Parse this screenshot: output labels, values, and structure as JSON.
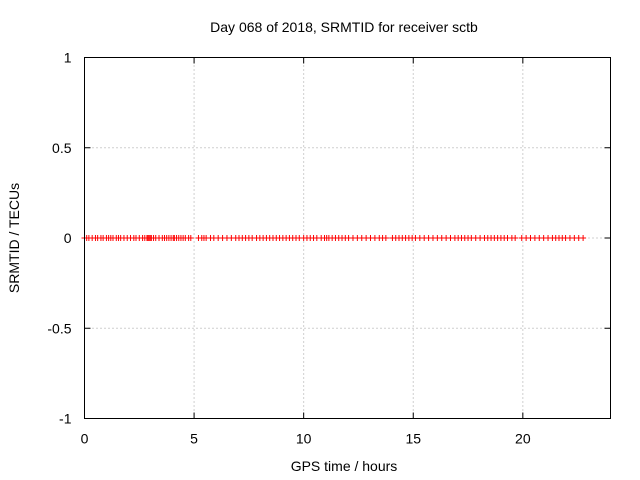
{
  "chart_data": {
    "type": "scatter",
    "title": "Day 068 of 2018, SRMTID for receiver sctb",
    "xlabel": "GPS time / hours",
    "ylabel": "SRMTID / TECUs",
    "xlim": [
      0,
      24
    ],
    "ylim": [
      -1,
      1
    ],
    "xticks": [
      0,
      5,
      10,
      15,
      20
    ],
    "xtick_labels": [
      "0",
      "5",
      "10",
      "15",
      "20"
    ],
    "yticks": [
      -1,
      -0.5,
      0,
      0.5,
      1
    ],
    "ytick_labels": [
      "-1",
      "-0.5",
      "0",
      "0.5",
      "1"
    ],
    "grid": true,
    "series": [
      {
        "name": "SRMTID",
        "marker": "+",
        "color": "#ff0000",
        "x": [
          0.0,
          0.1,
          0.2,
          0.35,
          0.5,
          0.6,
          0.75,
          0.85,
          1.0,
          1.1,
          1.2,
          1.3,
          1.45,
          1.55,
          1.65,
          1.8,
          1.95,
          2.1,
          2.25,
          2.35,
          2.5,
          2.65,
          2.75,
          2.85,
          2.9,
          2.95,
          3.0,
          3.05,
          3.15,
          3.25,
          3.4,
          3.55,
          3.65,
          3.75,
          3.85,
          3.95,
          4.05,
          4.1,
          4.2,
          4.3,
          4.4,
          4.5,
          4.6,
          4.75,
          4.85,
          5.2,
          5.35,
          5.45,
          5.55,
          5.75,
          5.9,
          6.1,
          6.3,
          6.5,
          6.7,
          6.9,
          7.05,
          7.2,
          7.35,
          7.5,
          7.65,
          7.85,
          8.0,
          8.15,
          8.3,
          8.45,
          8.6,
          8.75,
          8.9,
          9.05,
          9.2,
          9.35,
          9.5,
          9.65,
          9.8,
          10.0,
          10.15,
          10.3,
          10.45,
          10.6,
          10.8,
          10.95,
          11.05,
          11.15,
          11.3,
          11.45,
          11.6,
          11.75,
          11.9,
          12.05,
          12.25,
          12.45,
          12.65,
          12.85,
          13.05,
          13.25,
          13.45,
          13.6,
          13.75,
          14.05,
          14.2,
          14.35,
          14.5,
          14.65,
          14.8,
          14.95,
          15.1,
          15.3,
          15.5,
          15.7,
          15.9,
          16.1,
          16.3,
          16.5,
          16.7,
          16.9,
          17.05,
          17.2,
          17.35,
          17.5,
          17.65,
          17.85,
          18.05,
          18.25,
          18.4,
          18.55,
          18.7,
          18.85,
          19.0,
          19.15,
          19.3,
          19.5,
          19.65,
          19.95,
          20.15,
          20.35,
          20.55,
          20.75,
          20.95,
          21.15,
          21.35,
          21.5,
          21.65,
          21.8,
          21.95,
          22.15,
          22.35,
          22.55,
          22.75
        ],
        "y": [
          0,
          0,
          0,
          0,
          0,
          0,
          0,
          0,
          0,
          0,
          0,
          0,
          0,
          0,
          0,
          0,
          0,
          0,
          0,
          0,
          0,
          0,
          0,
          0,
          0,
          0,
          0,
          0,
          0,
          0,
          0,
          0,
          0,
          0,
          0,
          0,
          0,
          0,
          0,
          0,
          0,
          0,
          0,
          0,
          0,
          0,
          0,
          0,
          0,
          0,
          0,
          0,
          0,
          0,
          0,
          0,
          0,
          0,
          0,
          0,
          0,
          0,
          0,
          0,
          0,
          0,
          0,
          0,
          0,
          0,
          0,
          0,
          0,
          0,
          0,
          0,
          0,
          0,
          0,
          0,
          0,
          0,
          0,
          0,
          0,
          0,
          0,
          0,
          0,
          0,
          0,
          0,
          0,
          0,
          0,
          0,
          0,
          0,
          0,
          0,
          0,
          0,
          0,
          0,
          0,
          0,
          0,
          0,
          0,
          0,
          0,
          0,
          0,
          0,
          0,
          0,
          0,
          0,
          0,
          0,
          0,
          0,
          0,
          0,
          0,
          0,
          0,
          0,
          0,
          0,
          0,
          0,
          0,
          0,
          0,
          0,
          0,
          0,
          0,
          0,
          0,
          0,
          0,
          0,
          0,
          0,
          0,
          0,
          0
        ]
      }
    ]
  }
}
